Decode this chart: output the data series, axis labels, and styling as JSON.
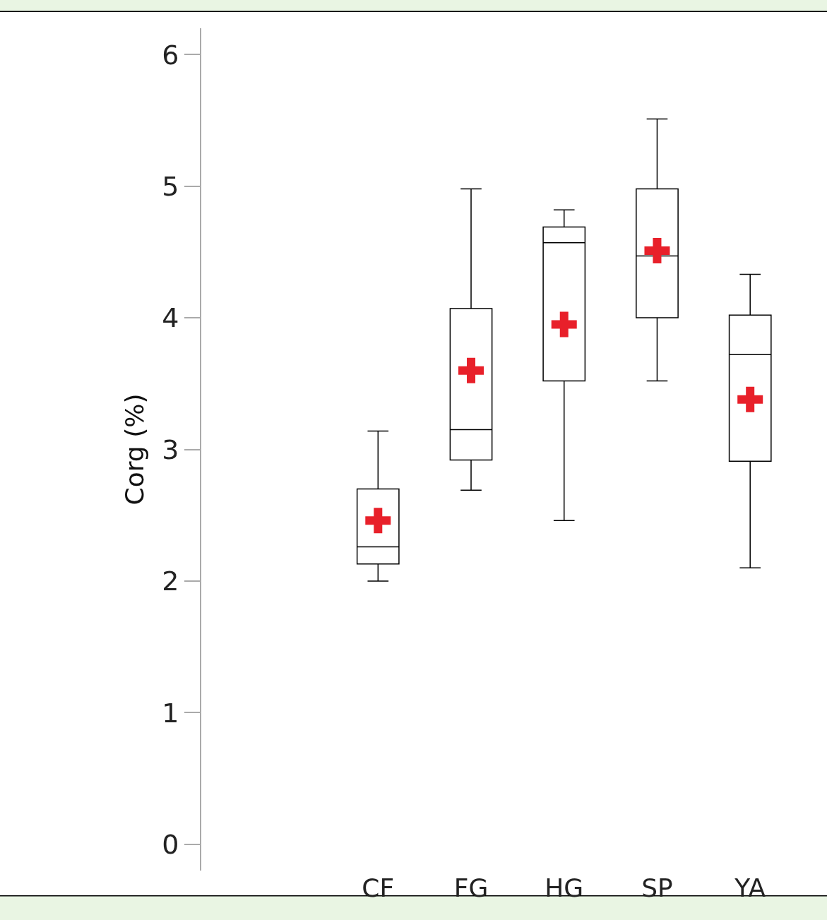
{
  "chart_data": {
    "type": "box",
    "ylabel": "Corg (%)",
    "categories": [
      "CF",
      "FG",
      "HG",
      "SP",
      "YA"
    ],
    "boxes": [
      {
        "low": 2.0,
        "q1": 2.13,
        "median": 2.26,
        "q3": 2.7,
        "high": 3.14
      },
      {
        "low": 2.69,
        "q1": 2.92,
        "median": 3.15,
        "q3": 4.07,
        "high": 4.98
      },
      {
        "low": 2.46,
        "q1": 3.52,
        "median": 4.57,
        "q3": 4.69,
        "high": 4.82
      },
      {
        "low": 3.52,
        "q1": 4.0,
        "median": 4.47,
        "q3": 4.98,
        "high": 5.51
      },
      {
        "low": 2.1,
        "q1": 2.91,
        "median": 3.72,
        "q3": 4.02,
        "high": 4.33
      }
    ],
    "series": [
      {
        "type": "scatter",
        "x": [
          "CF",
          "FG",
          "HG",
          "SP",
          "YA"
        ],
        "values": [
          2.46,
          3.6,
          3.95,
          4.51,
          3.38
        ],
        "color": "#e8202a",
        "marker": "cross"
      }
    ],
    "color": "#000000",
    "ylim": [
      -0.2,
      6.2
    ],
    "yticks": [
      0,
      1,
      2,
      3,
      4,
      5,
      6
    ]
  }
}
